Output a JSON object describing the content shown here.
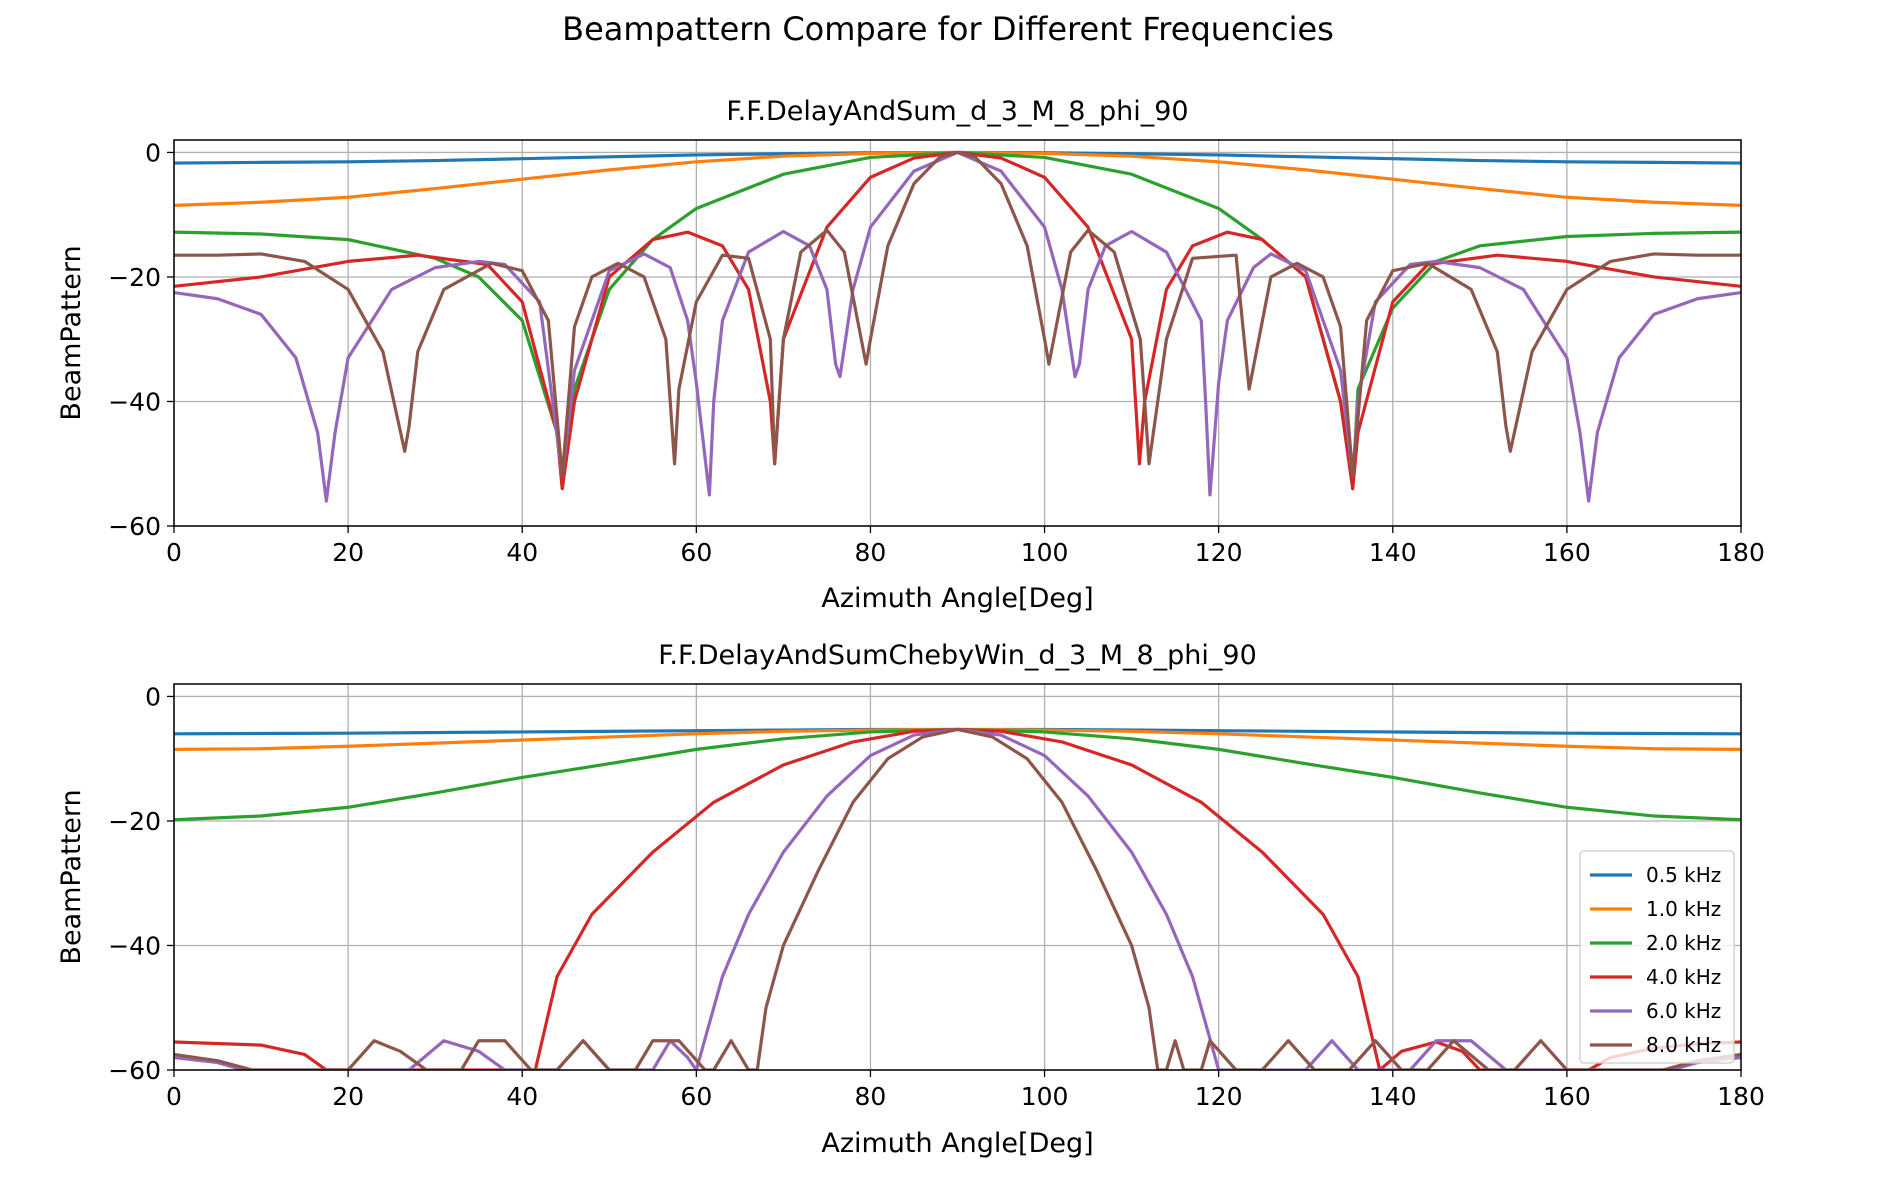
{
  "suptitle": "Beampattern Compare for Different Frequencies",
  "chart_data": [
    {
      "type": "line",
      "title": "F.F.DelayAndSum_d_3_M_8_phi_90",
      "xlabel": "Azimuth Angle[Deg]",
      "ylabel": "BeamPattern",
      "xlim": [
        0,
        180
      ],
      "ylim": [
        -60,
        2
      ],
      "xticks": [
        "0",
        "20",
        "40",
        "60",
        "80",
        "100",
        "120",
        "140",
        "160",
        "180"
      ],
      "yticks": [
        "0",
        "−20",
        "−40",
        "−60"
      ],
      "grid": true,
      "legend": false,
      "series": [
        {
          "name": "0.5 kHz",
          "color": "#1f77b4",
          "x": [
            0,
            10,
            20,
            30,
            40,
            50,
            60,
            70,
            80,
            90,
            100,
            110,
            120,
            130,
            140,
            150,
            160,
            170,
            180
          ],
          "values": [
            -1.7,
            -1.6,
            -1.5,
            -1.3,
            -1.0,
            -0.7,
            -0.4,
            -0.2,
            -0.05,
            0,
            -0.05,
            -0.2,
            -0.4,
            -0.7,
            -1.0,
            -1.3,
            -1.5,
            -1.6,
            -1.7
          ]
        },
        {
          "name": "1.0 kHz",
          "color": "#ff7f0e",
          "x": [
            0,
            10,
            20,
            30,
            40,
            50,
            60,
            70,
            80,
            90,
            100,
            110,
            120,
            130,
            140,
            150,
            160,
            170,
            180
          ],
          "values": [
            -8.5,
            -8.0,
            -7.2,
            -5.8,
            -4.3,
            -2.8,
            -1.5,
            -0.6,
            -0.15,
            0,
            -0.15,
            -0.6,
            -1.5,
            -2.8,
            -4.3,
            -5.8,
            -7.2,
            -8.0,
            -8.5
          ]
        },
        {
          "name": "2.0 kHz",
          "color": "#2ca02c",
          "x": [
            0,
            10,
            20,
            30,
            35,
            40,
            44,
            44.6,
            46,
            50,
            55,
            60,
            70,
            80,
            90,
            100,
            110,
            120,
            125,
            130,
            134,
            135.4,
            136,
            140,
            145,
            150,
            160,
            170,
            180
          ],
          "values": [
            -12.8,
            -13.1,
            -14.0,
            -17.0,
            -20.0,
            -27.0,
            -45.0,
            -54.0,
            -38.0,
            -22.0,
            -14.0,
            -9.0,
            -3.5,
            -0.8,
            0,
            -0.8,
            -3.5,
            -9.0,
            -14.0,
            -20.0,
            -40.0,
            -54.0,
            -38.0,
            -25.0,
            -17.5,
            -15.0,
            -13.5,
            -13.0,
            -12.8
          ]
        },
        {
          "name": "4.0 kHz",
          "color": "#d62728",
          "x": [
            0,
            10,
            20,
            28,
            36,
            40,
            44,
            44.6,
            46,
            50,
            55,
            59,
            63,
            66,
            68.5,
            69,
            70,
            75,
            80,
            85,
            90,
            95,
            100,
            105,
            110,
            110.9,
            111.5,
            114,
            117,
            121,
            125,
            130,
            134,
            135.4,
            136,
            140,
            144,
            152,
            160,
            170,
            180
          ],
          "values": [
            -21.5,
            -20.0,
            -17.5,
            -16.5,
            -18.0,
            -24.0,
            -45.0,
            -54.0,
            -40.0,
            -20.0,
            -14.0,
            -12.8,
            -15.0,
            -22.0,
            -40.0,
            -50.0,
            -30.0,
            -12.0,
            -4.0,
            -0.9,
            0,
            -0.9,
            -4.0,
            -12.0,
            -30.0,
            -50.0,
            -40.0,
            -22.0,
            -15.0,
            -12.8,
            -14.0,
            -20.0,
            -40.0,
            -54.0,
            -45.0,
            -24.0,
            -18.0,
            -16.5,
            -17.5,
            -20.0,
            -21.5
          ]
        },
        {
          "name": "6.0 kHz",
          "color": "#9467bd",
          "x": [
            0,
            5,
            10,
            14,
            16.5,
            17.5,
            18.5,
            20,
            25,
            30,
            35,
            38,
            42,
            44.6,
            46,
            50,
            54,
            57,
            59,
            60,
            61.5,
            62,
            63,
            66,
            70,
            73,
            75,
            76,
            76.5,
            78,
            80,
            85,
            90,
            95,
            100,
            102,
            103.5,
            104,
            105,
            107,
            110,
            114,
            118,
            118.5,
            119,
            120,
            121,
            124,
            126,
            130,
            134,
            135.4,
            136,
            138,
            142,
            145,
            150,
            155,
            160,
            161.5,
            162.5,
            163.5,
            166,
            170,
            175,
            180
          ],
          "values": [
            -22.5,
            -23.5,
            -26.0,
            -33.0,
            -45.0,
            -56.0,
            -45.0,
            -33.0,
            -22.0,
            -18.5,
            -17.5,
            -18.0,
            -24.0,
            -52.0,
            -35.0,
            -19.0,
            -16.3,
            -18.5,
            -27.0,
            -37.0,
            -55.0,
            -40.0,
            -27.0,
            -16.0,
            -12.7,
            -15.0,
            -22.0,
            -34.0,
            -36.0,
            -22.0,
            -12.0,
            -3.0,
            0,
            -3.0,
            -12.0,
            -22.0,
            -36.0,
            -34.0,
            -22.0,
            -15.0,
            -12.7,
            -16.0,
            -27.0,
            -40.0,
            -55.0,
            -37.0,
            -27.0,
            -18.5,
            -16.3,
            -19.0,
            -35.0,
            -52.0,
            -40.0,
            -24.0,
            -18.0,
            -17.5,
            -18.5,
            -22.0,
            -33.0,
            -45.0,
            -56.0,
            -45.0,
            -33.0,
            -26.0,
            -23.5,
            -22.5
          ]
        },
        {
          "name": "8.0 kHz",
          "color": "#8c564b",
          "x": [
            0,
            5,
            10,
            15,
            20,
            24,
            26.5,
            27,
            28,
            31,
            36.5,
            40,
            43,
            44.6,
            46,
            48,
            51,
            54,
            56.5,
            57.5,
            58,
            60,
            63,
            66,
            68.5,
            69,
            70,
            72,
            75,
            77,
            79.5,
            80,
            82,
            85,
            88,
            90,
            92,
            95,
            98,
            100,
            100.5,
            103,
            105,
            108,
            111,
            112,
            114,
            117,
            122,
            122.5,
            123.5,
            126,
            129,
            132,
            134,
            135.4,
            137,
            140,
            144,
            149,
            152,
            153,
            153.5,
            156,
            160,
            165,
            170,
            175,
            180
          ],
          "values": [
            -16.5,
            -16.5,
            -16.3,
            -17.5,
            -22.0,
            -32.0,
            -48.0,
            -44.0,
            -32.0,
            -22.0,
            -17.8,
            -19.0,
            -27.0,
            -52.0,
            -28.0,
            -20.0,
            -17.8,
            -20.0,
            -30.0,
            -50.0,
            -38.0,
            -24.0,
            -16.5,
            -17.0,
            -30.0,
            -50.0,
            -30.0,
            -16.0,
            -12.5,
            -16.0,
            -34.0,
            -30.0,
            -15.0,
            -5.0,
            -0.7,
            0,
            -0.7,
            -5.0,
            -15.0,
            -30.0,
            -34.0,
            -16.0,
            -12.5,
            -16.0,
            -30.0,
            -50.0,
            -30.0,
            -17.0,
            -16.5,
            -24.0,
            -38.0,
            -20.0,
            -17.8,
            -20.0,
            -28.0,
            -52.0,
            -27.0,
            -19.0,
            -17.8,
            -22.0,
            -32.0,
            -44.0,
            -48.0,
            -32.0,
            -22.0,
            -17.5,
            -16.3,
            -16.5,
            -16.5
          ]
        }
      ]
    },
    {
      "type": "line",
      "title": "F.F.DelayAndSumChebyWin_d_3_M_8_phi_90",
      "xlabel": "Azimuth Angle[Deg]",
      "ylabel": "BeamPattern",
      "xlim": [
        0,
        180
      ],
      "ylim": [
        -60,
        2
      ],
      "xticks": [
        "0",
        "20",
        "40",
        "60",
        "80",
        "100",
        "120",
        "140",
        "160",
        "180"
      ],
      "yticks": [
        "0",
        "−20",
        "−40",
        "−60"
      ],
      "grid": true,
      "legend": true,
      "legend_position": "lower right",
      "series": [
        {
          "name": "0.5 kHz",
          "color": "#1f77b4",
          "x": [
            0,
            20,
            40,
            60,
            80,
            90,
            100,
            120,
            140,
            160,
            180
          ],
          "values": [
            -6.0,
            -5.9,
            -5.7,
            -5.5,
            -5.3,
            -5.3,
            -5.3,
            -5.5,
            -5.7,
            -5.9,
            -6.0
          ]
        },
        {
          "name": "1.0 kHz",
          "color": "#ff7f0e",
          "x": [
            0,
            10,
            20,
            30,
            40,
            50,
            60,
            70,
            80,
            90,
            100,
            110,
            120,
            130,
            140,
            150,
            160,
            170,
            180
          ],
          "values": [
            -8.5,
            -8.4,
            -8.0,
            -7.5,
            -7.0,
            -6.5,
            -6.0,
            -5.6,
            -5.4,
            -5.3,
            -5.4,
            -5.6,
            -6.0,
            -6.5,
            -7.0,
            -7.5,
            -8.0,
            -8.4,
            -8.5
          ]
        },
        {
          "name": "2.0 kHz",
          "color": "#2ca02c",
          "x": [
            0,
            10,
            20,
            30,
            40,
            50,
            60,
            70,
            80,
            90,
            100,
            110,
            120,
            130,
            140,
            150,
            160,
            170,
            180
          ],
          "values": [
            -19.8,
            -19.2,
            -17.8,
            -15.5,
            -13.0,
            -10.8,
            -8.5,
            -6.8,
            -5.7,
            -5.3,
            -5.7,
            -6.8,
            -8.5,
            -10.8,
            -13.0,
            -15.5,
            -17.8,
            -19.2,
            -19.8
          ]
        },
        {
          "name": "4.0 kHz",
          "color": "#d62728",
          "x": [
            0,
            10,
            15,
            17.5,
            41.5,
            42,
            44,
            48,
            55,
            62,
            70,
            78,
            85,
            90,
            95,
            102,
            110,
            118,
            125,
            132,
            136,
            138,
            138.5,
            141,
            145,
            148,
            150,
            162.5,
            165,
            170,
            175,
            180
          ],
          "values": [
            -55.5,
            -56.0,
            -57.5,
            -60.0,
            -60.0,
            -57.0,
            -45.0,
            -35.0,
            -25.0,
            -17.0,
            -11.0,
            -7.3,
            -5.6,
            -5.3,
            -5.6,
            -7.3,
            -11.0,
            -17.0,
            -25.0,
            -35.0,
            -45.0,
            -57.0,
            -60.0,
            -57.0,
            -55.5,
            -57.0,
            -60.0,
            -60.0,
            -58.0,
            -56.5,
            -55.8,
            -55.5
          ]
        },
        {
          "name": "6.0 kHz",
          "color": "#9467bd",
          "x": [
            0,
            5,
            8,
            27,
            31,
            35,
            38,
            44,
            47,
            50,
            55,
            57,
            59,
            60,
            61,
            63,
            66,
            70,
            75,
            80,
            85,
            90,
            95,
            100,
            105,
            110,
            114,
            117,
            119,
            120,
            125,
            130,
            133,
            136,
            142,
            145,
            149,
            153,
            172,
            175,
            180
          ],
          "values": [
            -58.0,
            -58.8,
            -60.0,
            -60.0,
            -55.3,
            -57.0,
            -60.0,
            -60.0,
            -55.3,
            -60.0,
            -60.0,
            -55.3,
            -58.0,
            -60.0,
            -55.0,
            -45.0,
            -35.0,
            -25.0,
            -16.0,
            -9.5,
            -6.2,
            -5.3,
            -6.2,
            -9.5,
            -16.0,
            -25.0,
            -35.0,
            -45.0,
            -55.0,
            -60.0,
            -60.0,
            -60.0,
            -55.3,
            -60.0,
            -60.0,
            -55.3,
            -55.3,
            -60.0,
            -60.0,
            -58.8,
            -58.0
          ]
        },
        {
          "name": "8.0 kHz",
          "color": "#8c564b",
          "x": [
            0,
            5,
            9,
            20,
            23,
            26,
            29,
            33,
            35,
            38,
            41,
            44,
            47,
            50,
            53,
            55,
            58,
            61,
            62,
            64,
            66,
            67,
            68,
            70,
            74,
            78,
            82,
            86,
            90,
            94,
            98,
            102,
            106,
            110,
            112,
            113,
            114,
            115,
            116,
            118,
            119,
            122,
            125,
            128,
            131,
            135,
            138,
            141,
            144,
            147,
            151,
            154,
            157,
            160,
            171,
            175,
            180
          ],
          "values": [
            -57.5,
            -58.5,
            -60.0,
            -60.0,
            -55.3,
            -57.0,
            -60.0,
            -60.0,
            -55.3,
            -55.3,
            -60.0,
            -60.0,
            -55.3,
            -60.0,
            -60.0,
            -55.3,
            -55.3,
            -60.0,
            -60.0,
            -55.3,
            -60.0,
            -60.0,
            -50.0,
            -40.0,
            -28.0,
            -17.0,
            -10.0,
            -6.5,
            -5.3,
            -6.5,
            -10.0,
            -17.0,
            -28.0,
            -40.0,
            -50.0,
            -60.0,
            -60.0,
            -55.3,
            -60.0,
            -60.0,
            -55.3,
            -60.0,
            -60.0,
            -55.3,
            -60.0,
            -60.0,
            -55.3,
            -60.0,
            -60.0,
            -55.3,
            -60.0,
            -60.0,
            -55.3,
            -60.0,
            -60.0,
            -58.5,
            -57.5
          ]
        }
      ]
    }
  ]
}
